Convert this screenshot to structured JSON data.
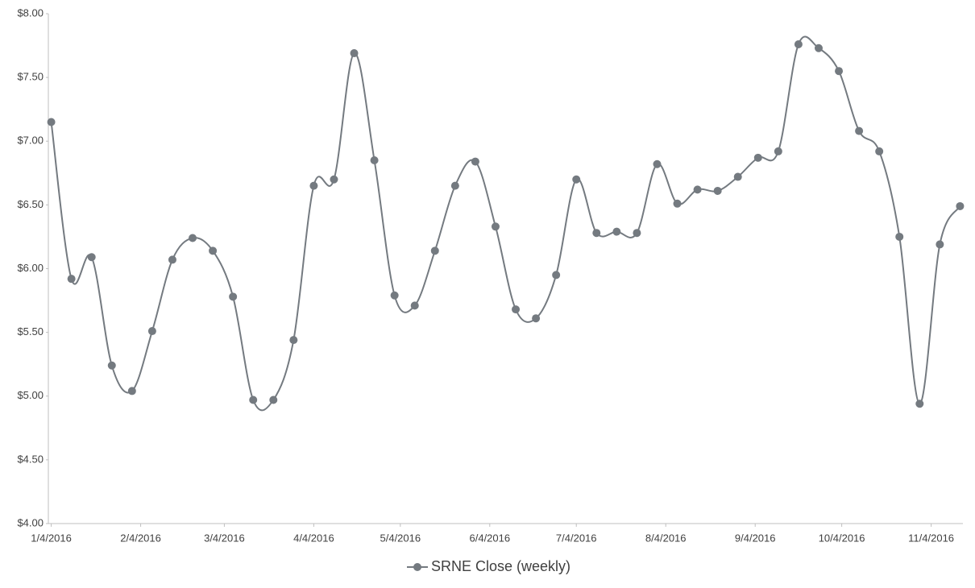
{
  "chart_data": {
    "type": "line",
    "x": [
      "2016-01-04",
      "2016-01-11",
      "2016-01-18",
      "2016-01-25",
      "2016-02-01",
      "2016-02-08",
      "2016-02-15",
      "2016-02-22",
      "2016-02-29",
      "2016-03-07",
      "2016-03-14",
      "2016-03-21",
      "2016-03-28",
      "2016-04-04",
      "2016-04-11",
      "2016-04-18",
      "2016-04-25",
      "2016-05-02",
      "2016-05-09",
      "2016-05-16",
      "2016-05-23",
      "2016-05-30",
      "2016-06-06",
      "2016-06-13",
      "2016-06-20",
      "2016-06-27",
      "2016-07-04",
      "2016-07-11",
      "2016-07-18",
      "2016-07-25",
      "2016-08-01",
      "2016-08-08",
      "2016-08-15",
      "2016-08-22",
      "2016-08-29",
      "2016-09-05",
      "2016-09-12",
      "2016-09-19",
      "2016-09-26",
      "2016-10-03",
      "2016-10-10",
      "2016-10-17",
      "2016-10-24",
      "2016-10-31",
      "2016-11-07",
      "2016-11-14"
    ],
    "series": [
      {
        "name": "SRNE Close (weekly)",
        "color": "#747a80",
        "values": [
          7.15,
          5.92,
          6.09,
          5.24,
          5.04,
          5.51,
          6.07,
          6.24,
          6.14,
          5.78,
          4.97,
          4.97,
          5.44,
          6.65,
          6.7,
          7.69,
          6.85,
          5.79,
          5.71,
          6.14,
          6.65,
          6.84,
          6.33,
          5.68,
          5.61,
          5.95,
          6.7,
          6.28,
          6.29,
          6.28,
          6.82,
          6.51,
          6.62,
          6.61,
          6.72,
          6.87,
          6.92,
          7.76,
          7.73,
          7.55,
          7.08,
          6.92,
          6.25,
          4.94,
          6.19,
          6.49
        ]
      }
    ],
    "xlim": [
      "2016-01-03",
      "2016-11-15"
    ],
    "xticks": [
      {
        "value": "2016-01-04",
        "label": "1/4/2016"
      },
      {
        "value": "2016-02-04",
        "label": "2/4/2016"
      },
      {
        "value": "2016-03-04",
        "label": "3/4/2016"
      },
      {
        "value": "2016-04-04",
        "label": "4/4/2016"
      },
      {
        "value": "2016-05-04",
        "label": "5/4/2016"
      },
      {
        "value": "2016-06-04",
        "label": "6/4/2016"
      },
      {
        "value": "2016-07-04",
        "label": "7/4/2016"
      },
      {
        "value": "2016-08-04",
        "label": "8/4/2016"
      },
      {
        "value": "2016-09-04",
        "label": "9/4/2016"
      },
      {
        "value": "2016-10-04",
        "label": "10/4/2016"
      },
      {
        "value": "2016-11-04",
        "label": "11/4/2016"
      }
    ],
    "ylim": [
      4,
      8
    ],
    "yticks": [
      {
        "value": 4,
        "label": "$4.00"
      },
      {
        "value": 4.5,
        "label": "$4.50"
      },
      {
        "value": 5,
        "label": "$5.00"
      },
      {
        "value": 5.5,
        "label": "$5.50"
      },
      {
        "value": 6,
        "label": "$6.00"
      },
      {
        "value": 6.5,
        "label": "$6.50"
      },
      {
        "value": 7,
        "label": "$7.00"
      },
      {
        "value": 7.5,
        "label": "$7.50"
      },
      {
        "value": 8,
        "label": "$8.00"
      }
    ],
    "grid": false,
    "smooth": true,
    "markers": true,
    "legend": "bottom"
  }
}
